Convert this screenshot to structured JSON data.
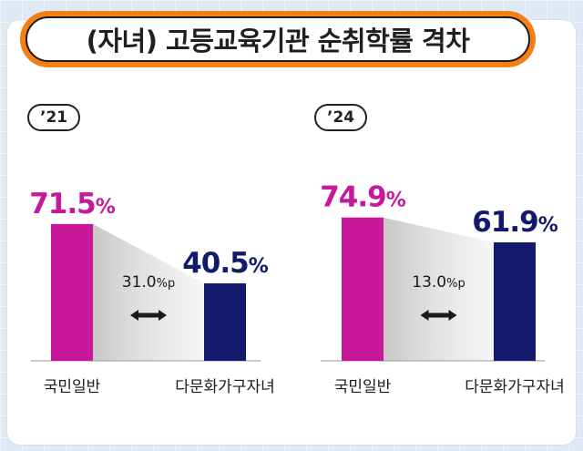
{
  "title": "(자녀) 고등교육기관 순취학률 격차",
  "colors": {
    "general": "#c8189a",
    "multicultural": "#131a6b",
    "title_border": "#f57f17",
    "arrow": "#1a1a1a"
  },
  "chart_data": [
    {
      "type": "bar",
      "year_label": "’21",
      "categories": [
        "국민일반",
        "다문화가구자녀"
      ],
      "values": [
        71.5,
        40.5
      ],
      "value_labels": [
        "71.5%",
        "40.5%"
      ],
      "gap_label": "31.0%p",
      "unit": "%"
    },
    {
      "type": "bar",
      "year_label": "’24",
      "categories": [
        "국민일반",
        "다문화가구자녀"
      ],
      "values": [
        74.9,
        61.9
      ],
      "value_labels": [
        "74.9%",
        "61.9%"
      ],
      "gap_label": "13.0%p",
      "unit": "%"
    }
  ]
}
